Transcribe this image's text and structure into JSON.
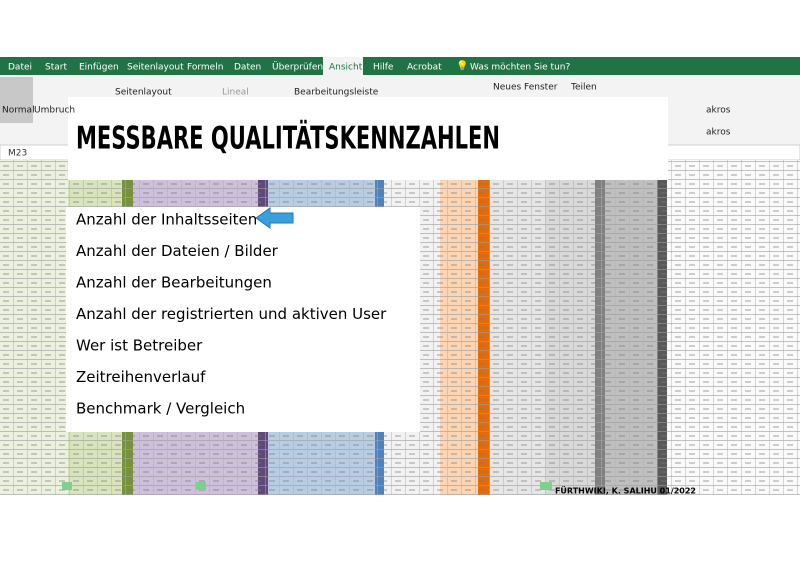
{
  "ribbon": {
    "tabs": [
      "Datei",
      "Start",
      "Einfügen",
      "Seitenlayout",
      "Formeln",
      "Daten",
      "Überprüfen",
      "Ansicht",
      "Hilfe",
      "Acrobat"
    ],
    "search": "Was möchten Sie tun?",
    "buttons": [
      "Normal",
      "Umbruch",
      "Seitenlayout",
      "Lineal",
      "Bearbeitungsleiste",
      "Neues Fenster",
      "Teilen",
      "akros",
      "akros"
    ]
  },
  "name_box": "M23",
  "slide": {
    "title": "MESSBARE QUALITÄTSKENNZAHLEN",
    "items": [
      "Anzahl der Inhaltsseiten",
      "Anzahl der Dateien / Bilder",
      "Anzahl der Bearbeitungen",
      "Anzahl der registrierten und aktiven User",
      "Wer ist Betreiber",
      "Zeitreihenverlauf",
      "Benchmark / Vergleich"
    ],
    "footer": "FÜRTHWIKI, K. SALIHU 01/2022"
  }
}
